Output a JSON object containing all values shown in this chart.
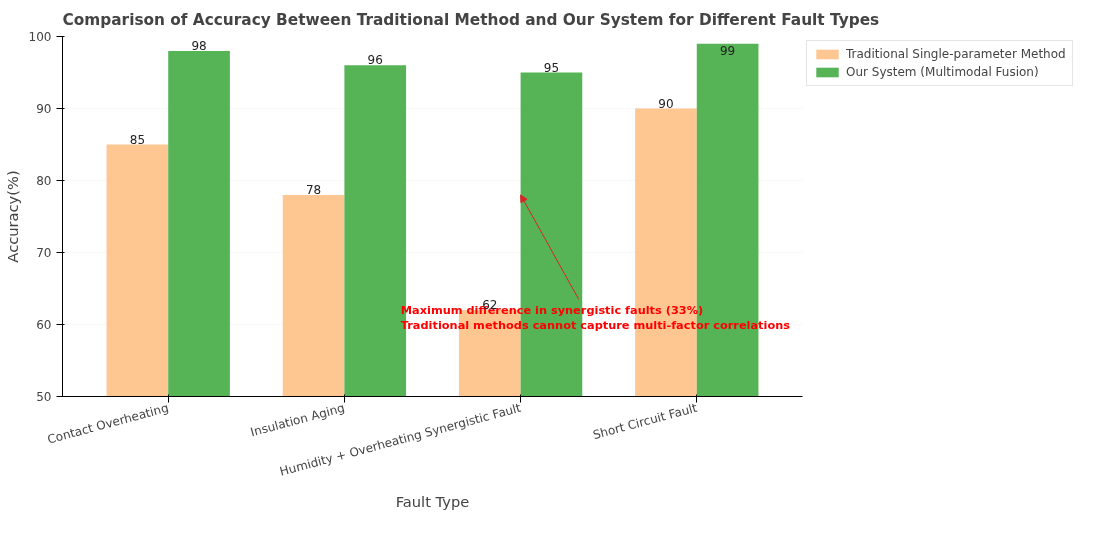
{
  "chart_data": {
    "type": "bar",
    "title": "Comparison of Accuracy Between Traditional Method and Our System for Different Fault Types",
    "xlabel": "Fault Type",
    "ylabel": "Accuracy(%)",
    "categories": [
      "Contact Overheating",
      "Insulation Aging",
      "Humidity + Overheating Synergistic Fault",
      "Short Circuit Fault"
    ],
    "series": [
      {
        "name": "Traditional Single-parameter Method",
        "color": "#fec792",
        "values": [
          85,
          78,
          62,
          90
        ]
      },
      {
        "name": "Our System (Multimodal Fusion)",
        "color": "#56b356",
        "values": [
          98,
          96,
          95,
          99
        ]
      }
    ],
    "ylim": [
      50,
      100
    ],
    "yticks": [
      50,
      60,
      70,
      80,
      90,
      100
    ],
    "grid": "y",
    "legend": "right",
    "data_labels": true,
    "annotations": [
      {
        "text": "Maximum difference in synergistic faults (33%)\nTraditional methods cannot capture multi-factor correlations",
        "x": "Humidity + Overheating Synergistic Fault",
        "y": 78
      }
    ]
  }
}
